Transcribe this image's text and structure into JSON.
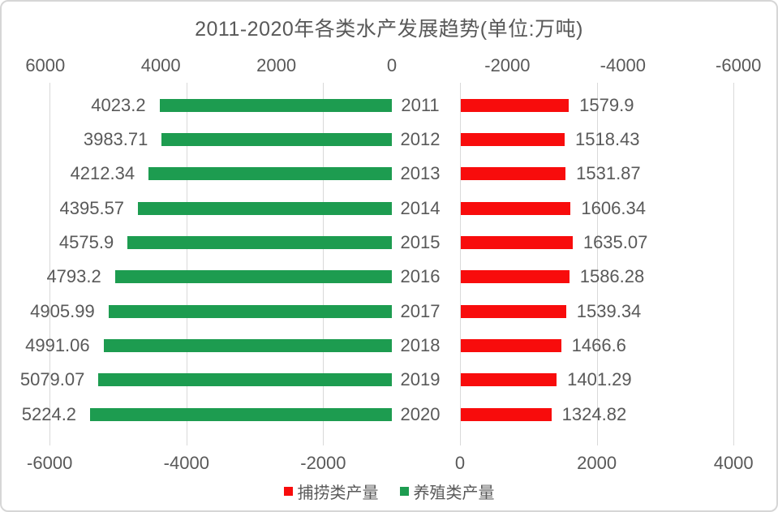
{
  "title": "2011-2020年各类水产发展趋势(单位:万吨)",
  "colors": {
    "capture_red": "#f80c0c",
    "aquaculture_green": "#1d9c50",
    "text_gray": "#595959",
    "gridline_gray": "#d9d9d9",
    "border_gray": "#d6d6d6"
  },
  "chart_data": {
    "type": "bar",
    "variant": "tornado-horizontal",
    "title": "2011-2020年各类水产发展趋势(单位:万吨)",
    "categories": [
      "2011",
      "2012",
      "2013",
      "2014",
      "2015",
      "2016",
      "2017",
      "2018",
      "2019",
      "2020"
    ],
    "series": [
      {
        "name": "捕捞类产量",
        "color": "#f80c0c",
        "side": "right",
        "values": [
          1579.9,
          1518.43,
          1531.87,
          1606.34,
          1635.07,
          1586.28,
          1539.34,
          1466.6,
          1401.29,
          1324.82
        ]
      },
      {
        "name": "养殖类产量",
        "color": "#1d9c50",
        "side": "left",
        "values": [
          4023.2,
          3983.71,
          4212.34,
          4395.57,
          4575.9,
          4793.2,
          4905.99,
          4991.06,
          5079.07,
          5224.2
        ]
      }
    ],
    "top_axis": {
      "tick_labels": [
        "6000",
        "4000",
        "2000",
        "0",
        "-2000",
        "-4000",
        "-6000"
      ],
      "range": [
        6000,
        -6000
      ]
    },
    "bottom_axis": {
      "tick_labels": [
        "-6000",
        "-4000",
        "-2000",
        "0",
        "2000",
        "4000"
      ],
      "range": [
        -6000,
        4000
      ]
    },
    "legend": [
      {
        "label": "捕捞类产量",
        "color": "#f80c0c"
      },
      {
        "label": "养殖类产量",
        "color": "#1d9c50"
      }
    ],
    "grid": true,
    "legend_position": "bottom-center",
    "data_labels": true
  }
}
